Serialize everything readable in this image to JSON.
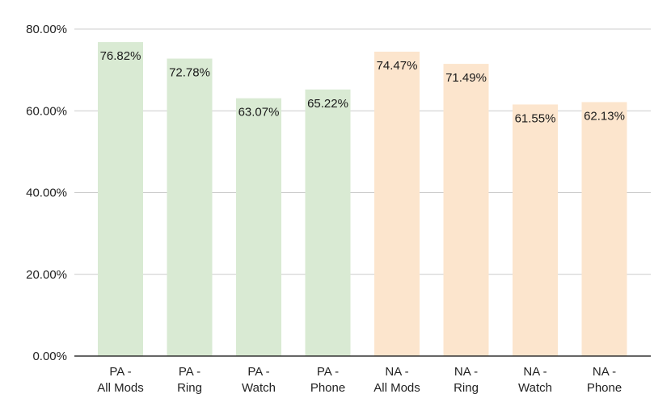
{
  "chart_data": {
    "type": "bar",
    "categories": [
      [
        "PA -",
        "All Mods"
      ],
      [
        "PA -",
        "Ring"
      ],
      [
        "PA -",
        "Watch"
      ],
      [
        "PA -",
        "Phone"
      ],
      [
        "NA -",
        "All Mods"
      ],
      [
        "NA -",
        "Ring"
      ],
      [
        "NA -",
        "Watch"
      ],
      [
        "NA -",
        "Phone"
      ]
    ],
    "values": [
      76.82,
      72.78,
      63.07,
      65.22,
      74.47,
      71.49,
      61.55,
      62.13
    ],
    "data_labels": [
      "76.82%",
      "72.78%",
      "63.07%",
      "65.22%",
      "74.47%",
      "71.49%",
      "61.55%",
      "62.13%"
    ],
    "bar_colors": [
      "#d9ead3",
      "#d9ead3",
      "#d9ead3",
      "#d9ead3",
      "#fce5cd",
      "#fce5cd",
      "#fce5cd",
      "#fce5cd"
    ],
    "ylim": [
      0,
      80
    ],
    "yticks": [
      0,
      20,
      40,
      60,
      80
    ],
    "ytick_labels": [
      "0.00%",
      "20.00%",
      "40.00%",
      "60.00%",
      "80.00%"
    ],
    "title": "",
    "xlabel": "",
    "ylabel": "",
    "grid": true,
    "legend": "none",
    "gridline_color": "#cccccc",
    "axis_color": "#333333"
  }
}
